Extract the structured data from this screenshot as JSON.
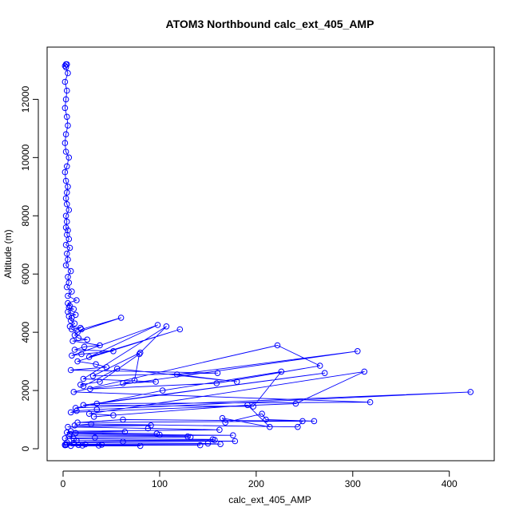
{
  "chart_data": {
    "type": "line",
    "title": "ATOM3 Northbound calc_ext_405_AMP",
    "xlabel": "calc_ext_405_AMP",
    "ylabel": "Altitude (m)",
    "xlim": [
      0,
      430
    ],
    "ylim": [
      0,
      13300
    ],
    "x_ticks": [
      0,
      100,
      200,
      300,
      400
    ],
    "y_ticks": [
      0,
      2000,
      4000,
      6000,
      8000,
      10000,
      12000
    ],
    "grid": false,
    "legend": "none",
    "marker": "open-circle",
    "colors": {
      "series": "#0000ff",
      "axes": "#000000"
    },
    "series": [
      {
        "x": [
          3,
          4,
          2,
          3,
          5,
          2,
          4,
          3,
          2,
          4,
          5,
          3,
          2,
          3,
          6,
          4,
          2,
          3,
          5,
          4,
          3,
          4,
          6,
          3,
          4,
          3,
          5,
          4,
          6,
          3,
          7,
          4,
          5,
          3,
          8,
          5,
          6,
          4,
          9,
          5,
          14,
          5,
          7,
          6,
          11,
          5,
          13,
          6,
          9,
          8,
          12,
          7,
          18,
          9,
          15,
          60,
          19,
          12,
          16,
          25,
          10,
          38,
          22,
          12,
          52,
          19,
          9,
          98,
          27,
          121,
          15,
          34,
          45,
          8,
          160,
          31,
          80,
          107,
          21,
          96,
          62,
          74,
          79,
          38,
          18,
          21,
          56,
          180,
          118,
          305,
          28,
          159,
          266,
          222,
          11,
          318,
          35,
          271,
          21,
          197,
          226,
          103,
          13,
          422,
          35,
          14,
          8,
          241,
          312,
          27,
          52,
          32,
          191,
          214,
          165,
          168,
          206,
          210,
          260,
          62,
          15,
          248,
          243,
          29,
          12,
          91,
          5,
          88,
          162,
          8,
          64,
          4,
          13,
          97,
          7,
          100,
          176,
          6,
          129,
          132,
          33,
          2,
          11,
          155,
          157,
          14,
          178,
          62,
          4,
          11,
          150,
          163,
          4,
          23,
          40,
          2,
          3,
          16,
          142,
          2,
          37,
          20,
          8,
          80
        ],
        "y": [
          13200,
          13200,
          13150,
          13100,
          12900,
          12600,
          12300,
          12000,
          11700,
          11400,
          11100,
          10800,
          10500,
          10200,
          10000,
          9700,
          9500,
          9200,
          9000,
          8800,
          8600,
          8400,
          8200,
          8000,
          7800,
          7600,
          7500,
          7350,
          7200,
          7000,
          6900,
          6700,
          6500,
          6300,
          6100,
          5900,
          5700,
          5550,
          5400,
          5250,
          5100,
          5000,
          4900,
          4850,
          4800,
          4700,
          4600,
          4550,
          4500,
          4400,
          4300,
          4200,
          4150,
          4100,
          4000,
          4500,
          4100,
          3900,
          3800,
          3750,
          3700,
          3550,
          3500,
          3400,
          3350,
          3250,
          3200,
          4250,
          3150,
          4100,
          3000,
          2900,
          2800,
          2700,
          2600,
          2500,
          3300,
          4200,
          2400,
          2300,
          2250,
          2350,
          3250,
          2300,
          2200,
          2150,
          2750,
          2300,
          2550,
          3350,
          2050,
          2250,
          2850,
          3550,
          1950,
          1600,
          1550,
          2600,
          1500,
          1450,
          2650,
          2000,
          1400,
          1950,
          1350,
          1300,
          1250,
          1550,
          2650,
          1200,
          1150,
          1100,
          1500,
          750,
          1050,
          900,
          1200,
          1000,
          950,
          1000,
          900,
          950,
          750,
          850,
          800,
          800,
          750,
          700,
          650,
          600,
          580,
          560,
          540,
          520,
          500,
          480,
          460,
          440,
          420,
          400,
          380,
          360,
          340,
          320,
          300,
          280,
          260,
          240,
          220,
          200,
          180,
          160,
          150,
          150,
          140,
          140,
          130,
          130,
          120,
          120,
          110,
          110,
          100,
          100
        ]
      }
    ]
  }
}
